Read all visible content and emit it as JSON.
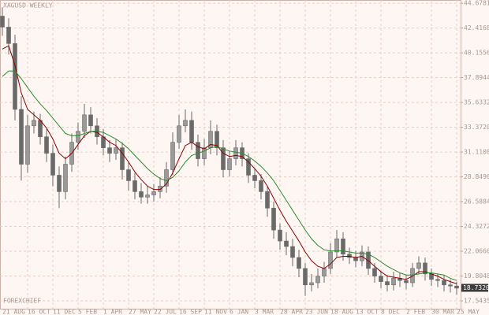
{
  "chart_data": {
    "type": "candlestick",
    "title": "XAGUSD WEEKLY",
    "watermark": "FOREXCHIEF",
    "categories": [
      "21 AUG",
      null,
      null,
      null,
      "16 OCT",
      null,
      null,
      null,
      "11 DEC",
      null,
      null,
      null,
      "5 FEB",
      null,
      null,
      null,
      "1 APR",
      null,
      null,
      null,
      "27 MAY",
      null,
      null,
      null,
      "22 JUL",
      null,
      null,
      null,
      "16 SEP",
      null,
      null,
      null,
      "11 NOV",
      null,
      null,
      null,
      "6 JAN",
      null,
      null,
      null,
      "3 MAR",
      null,
      null,
      null,
      "28 APR",
      null,
      null,
      null,
      "23 JUN",
      null,
      null,
      null,
      "18 AUG",
      null,
      null,
      null,
      "13 OCT",
      null,
      null,
      null,
      "8 DEC",
      null,
      null,
      null,
      "2 FEB",
      null,
      null,
      null,
      "30 MAR",
      null,
      null,
      null,
      "25 MAY"
    ],
    "open": [
      43.5,
      42.5,
      41.0,
      35.0,
      30.0,
      33.5,
      34.0,
      32.5,
      31.0,
      29.0,
      27.5,
      30.0,
      32.0,
      33.0,
      34.5,
      33.5,
      32.5,
      31.5,
      31.0,
      31.5,
      29.5,
      28.5,
      27.5,
      27.0,
      27.2,
      27.5,
      28.0,
      29.5,
      32.0,
      33.5,
      34.0,
      32.0,
      30.5,
      31.5,
      33.0,
      31.5,
      29.5,
      30.5,
      31.5,
      30.5,
      29.0,
      28.5,
      27.5,
      26.0,
      24.0,
      23.0,
      22.5,
      21.5,
      20.5,
      19.0,
      19.2,
      19.8,
      20.5,
      22.0,
      23.2,
      21.8,
      21.5,
      21.2,
      22.0,
      20.5,
      19.8,
      19.3,
      19.0,
      19.6,
      19.4,
      19.2,
      20.5,
      21.0,
      20.0,
      19.5,
      19.4,
      19.0,
      18.9
    ],
    "high": [
      44.3,
      43.3,
      41.8,
      36.2,
      34.5,
      34.8,
      34.6,
      33.2,
      31.8,
      29.8,
      30.7,
      32.8,
      33.8,
      35.5,
      35.2,
      34.2,
      33.2,
      32.2,
      32.3,
      32.0,
      30.2,
      29.2,
      28.3,
      28.0,
      28.2,
      28.8,
      30.2,
      32.9,
      34.5,
      35.0,
      34.8,
      32.7,
      32.3,
      34.0,
      33.6,
      32.2,
      31.2,
      32.2,
      32.0,
      31.0,
      29.6,
      29.1,
      28.0,
      26.6,
      24.6,
      23.8,
      23.2,
      22.2,
      21.0,
      20.0,
      20.5,
      21.1,
      22.8,
      24.0,
      23.8,
      22.4,
      22.1,
      22.6,
      22.5,
      21.0,
      20.3,
      19.9,
      20.2,
      20.1,
      19.9,
      21.0,
      21.6,
      21.5,
      20.5,
      20.0,
      19.9,
      19.5,
      19.3
    ],
    "low": [
      41.7,
      40.0,
      34.0,
      28.5,
      29.2,
      32.8,
      31.8,
      30.2,
      28.0,
      26.0,
      26.8,
      29.3,
      31.3,
      32.4,
      32.8,
      31.8,
      30.8,
      30.2,
      30.4,
      28.6,
      27.6,
      26.8,
      26.4,
      26.4,
      26.6,
      26.9,
      27.4,
      29.0,
      31.4,
      32.9,
      31.3,
      29.8,
      29.9,
      30.9,
      30.8,
      28.8,
      28.9,
      29.9,
      29.8,
      28.3,
      27.8,
      26.8,
      25.2,
      23.2,
      22.2,
      21.7,
      20.7,
      19.7,
      18.0,
      18.4,
      18.7,
      19.2,
      20.0,
      21.5,
      21.2,
      20.9,
      20.6,
      20.7,
      19.9,
      19.2,
      18.7,
      18.4,
      18.5,
      18.8,
      18.6,
      18.8,
      20.0,
      19.4,
      18.9,
      18.8,
      18.4,
      18.3,
      18.1
    ],
    "close": [
      42.5,
      41.0,
      35.0,
      30.0,
      33.5,
      34.0,
      32.5,
      31.0,
      29.0,
      27.5,
      30.0,
      32.0,
      33.0,
      34.5,
      33.5,
      32.5,
      31.5,
      31.0,
      31.5,
      29.5,
      28.5,
      27.5,
      27.0,
      27.2,
      27.5,
      28.0,
      29.5,
      32.0,
      33.5,
      34.0,
      32.0,
      30.5,
      31.5,
      33.0,
      31.5,
      29.5,
      30.5,
      31.5,
      30.5,
      29.0,
      28.5,
      27.5,
      26.0,
      24.0,
      23.0,
      22.5,
      21.5,
      20.5,
      19.0,
      19.2,
      19.8,
      20.5,
      22.0,
      23.2,
      21.8,
      21.5,
      21.2,
      22.0,
      20.5,
      19.8,
      19.3,
      19.0,
      19.6,
      19.4,
      19.2,
      20.5,
      21.0,
      20.0,
      19.5,
      19.4,
      19.0,
      18.9,
      18.7
    ],
    "color": "#6a6a6a",
    "lines": [
      {
        "color": "#8b0000",
        "values": [
          40.5,
          40.8,
          39.0,
          36.5,
          35.0,
          34.5,
          34.0,
          33.3,
          32.3,
          31.0,
          30.5,
          31.0,
          31.8,
          32.6,
          33.0,
          32.9,
          32.5,
          32.0,
          31.7,
          31.0,
          30.2,
          29.3,
          28.6,
          28.0,
          27.7,
          27.7,
          28.2,
          29.2,
          30.5,
          31.7,
          32.0,
          31.6,
          31.4,
          31.8,
          31.7,
          31.0,
          30.7,
          30.8,
          30.7,
          30.2,
          29.6,
          28.9,
          28.0,
          26.9,
          25.8,
          24.8,
          23.9,
          23.0,
          22.0,
          21.2,
          20.7,
          20.5,
          20.9,
          21.5,
          21.6,
          21.6,
          21.5,
          21.6,
          21.2,
          20.7,
          20.2,
          19.8,
          19.7,
          19.6,
          19.5,
          19.8,
          20.2,
          20.2,
          20.0,
          19.8,
          19.5,
          19.3,
          19.1
        ]
      },
      {
        "color": "#2e8b2e",
        "values": [
          38.0,
          38.5,
          38.5,
          37.8,
          37.0,
          36.2,
          35.5,
          34.9,
          34.2,
          33.5,
          32.8,
          32.6,
          32.6,
          32.8,
          33.0,
          33.0,
          32.9,
          32.6,
          32.3,
          31.9,
          31.4,
          30.8,
          30.2,
          29.6,
          29.1,
          28.7,
          28.5,
          28.8,
          29.4,
          30.2,
          30.8,
          31.0,
          31.2,
          31.5,
          31.6,
          31.4,
          31.2,
          31.1,
          31.0,
          30.7,
          30.3,
          29.8,
          29.2,
          28.5,
          27.6,
          26.7,
          25.8,
          24.9,
          24.0,
          23.2,
          22.6,
          22.2,
          22.1,
          22.1,
          22.1,
          22.0,
          21.9,
          21.9,
          21.8,
          21.5,
          21.1,
          20.7,
          20.4,
          20.1,
          19.9,
          19.9,
          20.0,
          20.1,
          20.1,
          20.0,
          19.9,
          19.6,
          19.4
        ]
      }
    ],
    "ylim": [
      16.83,
      44.97
    ],
    "yticks": [
      44.6781,
      42.4168,
      40.1556,
      37.8944,
      35.6332,
      {
        "value": 33.372,
        "label": "33.3720"
      },
      31.1108,
      28.8496,
      26.5884,
      24.3272,
      {
        "value": 22.066,
        "label": "22.0660"
      },
      19.8048,
      17.5435
    ],
    "last_price": {
      "value": 18.732,
      "label": "18.7320"
    },
    "grid": true
  }
}
